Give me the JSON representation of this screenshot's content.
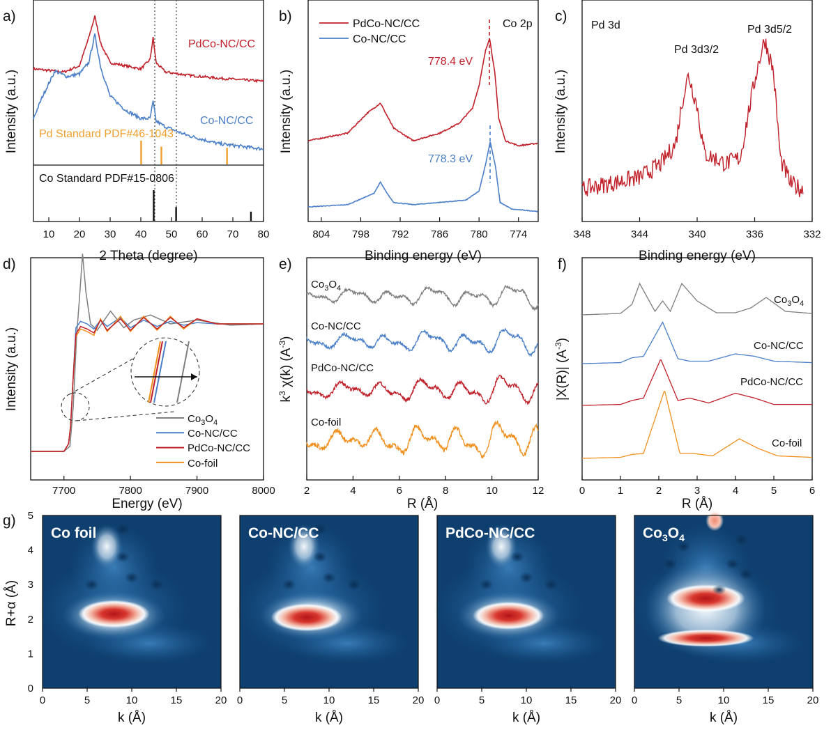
{
  "colors": {
    "red": "#c0202a",
    "blue": "#4a7fc8",
    "gray": "#7f7f7f",
    "orange": "#f0901e",
    "black": "#111111",
    "std_pd": "#f0a030",
    "hm_dark": "#0f3f6e",
    "hm_light": "#ffffff",
    "hm_red": "#c41f21"
  },
  "panels": {
    "a": {
      "label": "a)",
      "ylabel": "Intensity (a.u.)",
      "xlabel": "2 Theta (degree)",
      "xticks": [
        "10",
        "20",
        "30",
        "40",
        "50",
        "60",
        "70",
        "80"
      ],
      "series_labels": [
        "PdCo-NC/CC",
        "Co-NC/CC"
      ],
      "pd_standard": "Pd Standard PDF#46-1043",
      "co_standard": "Co Standard PDF#15-0806"
    },
    "b": {
      "label": "b)",
      "ylabel": "Intensity (a.u.)",
      "xlabel": "Binding energy (eV)",
      "xticks": [
        "804",
        "798",
        "792",
        "786",
        "780",
        "774"
      ],
      "legend": [
        "PdCo-NC/CC",
        "Co-NC/CC"
      ],
      "region": "Co 2p",
      "peak_red": "778.4 eV",
      "peak_blue": "778.3 eV"
    },
    "c": {
      "label": "c)",
      "ylabel": "Intensity (a.u.)",
      "xlabel": "Binding energy (eV)",
      "xticks": [
        "348",
        "344",
        "340",
        "336",
        "332"
      ],
      "region": "Pd 3d",
      "peak_left": "Pd 3d3/2",
      "peak_right": "Pd 3d5/2"
    },
    "d": {
      "label": "d)",
      "ylabel": "Intensity (a.u.)",
      "xlabel": "Energy (eV)",
      "xticks": [
        "7700",
        "7800",
        "7900",
        "8000"
      ],
      "legend": [
        "Co3O4",
        "Co-NC/CC",
        "PdCo-NC/CC",
        "Co-foil"
      ]
    },
    "e": {
      "label": "e)",
      "ylabel": "k3 χ(k) (A-3)",
      "xlabel": "R (Å)",
      "xticks": [
        "2",
        "4",
        "6",
        "8",
        "10",
        "12"
      ],
      "curve_labels": [
        "Co3O4",
        "Co-NC/CC",
        "PdCo-NC/CC",
        "Co-foil"
      ]
    },
    "f": {
      "label": "f)",
      "ylabel": "|X(R)| (A-3)",
      "xlabel": "R (Å)",
      "xticks": [
        "0",
        "1",
        "2",
        "3",
        "4",
        "5",
        "6"
      ],
      "curve_labels": [
        "Co3O4",
        "Co-NC/CC",
        "PdCo-NC/CC",
        "Co-foil"
      ]
    },
    "g": {
      "label": "g)",
      "ylabel": "R+α (Å)",
      "xlabel": "k (Å)",
      "yticks": [
        "0",
        "1",
        "2",
        "3",
        "4",
        "5"
      ],
      "xticks": [
        "0",
        "5",
        "10",
        "15",
        "20"
      ],
      "titles": [
        "Co foil",
        "Co-NC/CC",
        "PdCo-NC/CC",
        "Co3O4"
      ]
    }
  },
  "chart_data": [
    {
      "id": "a",
      "type": "line",
      "title": "",
      "xlabel": "2 Theta (degree)",
      "ylabel": "Intensity (a.u.)",
      "xlim": [
        5,
        80
      ],
      "series": [
        {
          "name": "PdCo-NC/CC",
          "x": [
            5,
            15,
            20,
            23,
            25,
            27,
            30,
            35,
            40,
            43,
            44,
            45,
            48,
            55,
            65,
            80
          ],
          "y": [
            8.6,
            8.5,
            8.7,
            9.6,
            10.3,
            9.4,
            8.8,
            8.7,
            8.6,
            8.9,
            9.6,
            8.8,
            8.5,
            8.4,
            8.3,
            8.2
          ]
        },
        {
          "name": "Co-NC/CC",
          "x": [
            5,
            8,
            12,
            16,
            20,
            23,
            25,
            27,
            30,
            35,
            40,
            43,
            44,
            45,
            48,
            55,
            65,
            80
          ],
          "y": [
            5.0,
            5.8,
            6.7,
            6.5,
            6.6,
            7.0,
            8.0,
            6.8,
            5.8,
            5.3,
            5.0,
            5.0,
            5.6,
            4.9,
            4.7,
            4.4,
            4.1,
            3.9
          ]
        }
      ],
      "pd_standard_peaks": {
        "x": [
          40.1,
          46.7,
          68.1
        ],
        "heights": [
          1.0,
          0.75,
          0.7
        ]
      },
      "co_standard_peaks": {
        "x": [
          44.2,
          51.5,
          75.9
        ],
        "heights": [
          1.0,
          0.45,
          0.3
        ]
      },
      "reference_lines_x": [
        44.2,
        51.5
      ]
    },
    {
      "id": "b",
      "type": "line",
      "title": "Co 2p",
      "xlabel": "Binding energy (eV)",
      "ylabel": "Intensity (a.u.)",
      "xlim": [
        806,
        771
      ],
      "x_reversed": true,
      "series": [
        {
          "name": "PdCo-NC/CC",
          "x": [
            806,
            800,
            797,
            795,
            793,
            790,
            786,
            783,
            781,
            780,
            779,
            778.4,
            777.6,
            777,
            776,
            774,
            771
          ],
          "y": [
            6.3,
            6.6,
            7.4,
            7.8,
            6.8,
            6.3,
            6.6,
            7.0,
            7.6,
            8.5,
            9.9,
            10.4,
            9.0,
            7.2,
            6.3,
            6.1,
            6.2
          ]
        },
        {
          "name": "Co-NC/CC",
          "x": [
            806,
            800,
            796,
            795,
            794,
            793,
            790,
            786,
            782,
            780,
            779,
            778.3,
            777.5,
            776.8,
            775,
            771
          ],
          "y": [
            1.3,
            1.4,
            1.9,
            2.4,
            1.9,
            1.5,
            1.4,
            1.5,
            1.6,
            2.0,
            3.2,
            4.2,
            3.1,
            1.5,
            1.2,
            1.1
          ]
        }
      ],
      "peak_markers": [
        {
          "x": 778.4,
          "label": "778.4 eV"
        },
        {
          "x": 778.3,
          "label": "778.3 eV"
        }
      ]
    },
    {
      "id": "c",
      "type": "line",
      "title": "Pd 3d",
      "xlabel": "Binding energy (eV)",
      "ylabel": "Intensity (a.u.)",
      "xlim": [
        348,
        332
      ],
      "x_reversed": true,
      "series": [
        {
          "name": "Pd 3d",
          "x": [
            348,
            346,
            344,
            342.5,
            341.5,
            341,
            340.6,
            340,
            339.5,
            338,
            337,
            336.4,
            335.8,
            335.3,
            334.7,
            334.2,
            333.5,
            332.5
          ],
          "y": [
            2.0,
            2.3,
            2.6,
            3.3,
            4.3,
            6.6,
            7.8,
            6.2,
            3.8,
            3.3,
            3.6,
            6.0,
            8.2,
            9.6,
            8.0,
            3.5,
            2.3,
            1.9
          ]
        }
      ],
      "peaks": [
        {
          "x": 340.6,
          "label": "Pd 3d3/2"
        },
        {
          "x": 335.3,
          "label": "Pd 3d5/2"
        }
      ]
    },
    {
      "id": "d",
      "type": "line",
      "title": "",
      "xlabel": "Energy (eV)",
      "ylabel": "Intensity (a.u.)",
      "xlim": [
        7650,
        8000
      ],
      "series": [
        {
          "name": "Co3O4",
          "x": [
            7650,
            7700,
            7709,
            7714,
            7719,
            7724,
            7728,
            7733,
            7740,
            7750,
            7770,
            7790,
            7805,
            7830,
            7860,
            7900,
            7950,
            8000
          ],
          "y": [
            0.0,
            0.0,
            0.04,
            0.35,
            0.9,
            1.25,
            1.55,
            1.25,
            1.0,
            0.95,
            1.1,
            0.97,
            1.03,
            1.07,
            1.0,
            1.03,
            0.99,
            1.0
          ]
        },
        {
          "name": "Co-NC/CC",
          "x": [
            7650,
            7700,
            7707,
            7710,
            7713,
            7718,
            7725,
            7735,
            7745,
            7755,
            7765,
            7785,
            7800,
            7820,
            7840,
            7860,
            7880,
            7900,
            7930,
            7960,
            8000
          ],
          "y": [
            0.0,
            0.0,
            0.06,
            0.2,
            0.5,
            0.97,
            1.02,
            1.0,
            0.96,
            1.03,
            0.98,
            1.05,
            0.97,
            1.03,
            0.98,
            1.02,
            0.99,
            1.01,
            1.0,
            1.0,
            1.0
          ]
        },
        {
          "name": "PdCo-NC/CC",
          "x": [
            7650,
            7700,
            7707,
            7710,
            7713,
            7718,
            7725,
            7735,
            7745,
            7755,
            7765,
            7785,
            7800,
            7820,
            7840,
            7860,
            7880,
            7900,
            7930,
            7960,
            8000
          ],
          "y": [
            0.0,
            0.0,
            0.06,
            0.2,
            0.5,
            0.92,
            0.98,
            0.96,
            0.93,
            1.03,
            0.95,
            1.04,
            0.95,
            1.05,
            0.96,
            1.05,
            0.97,
            1.04,
            1.0,
            1.0,
            1.0
          ]
        },
        {
          "name": "Co-foil",
          "x": [
            7650,
            7700,
            7707,
            7710,
            7713,
            7718,
            7725,
            7735,
            7745,
            7755,
            7765,
            7785,
            7800,
            7820,
            7840,
            7860,
            7880,
            7900,
            7930,
            7960,
            8000
          ],
          "y": [
            0.0,
            0.0,
            0.06,
            0.2,
            0.5,
            0.9,
            0.96,
            0.94,
            0.91,
            1.04,
            0.94,
            1.06,
            0.94,
            1.06,
            0.95,
            1.06,
            0.96,
            1.04,
            1.0,
            1.0,
            1.0
          ]
        }
      ]
    },
    {
      "id": "e",
      "type": "line",
      "title": "",
      "xlabel": "R (Å)",
      "ylabel": "k3 χ(k) (A-3)",
      "xlim": [
        2,
        12
      ],
      "series": [
        {
          "name": "Co3O4",
          "offset": 3.0
        },
        {
          "name": "Co-NC/CC",
          "offset": 2.0
        },
        {
          "name": "PdCo-NC/CC",
          "offset": 1.0
        },
        {
          "name": "Co-foil",
          "offset": 0.0
        }
      ]
    },
    {
      "id": "f",
      "type": "line",
      "title": "",
      "xlabel": "R (Å)",
      "ylabel": "|X(R)| (A-3)",
      "xlim": [
        0,
        6
      ],
      "series": [
        {
          "name": "Co3O4",
          "offset": 3.0,
          "x": [
            0,
            1,
            1.3,
            1.5,
            1.9,
            2.1,
            2.3,
            2.6,
            3.0,
            3.5,
            4.0,
            4.4,
            4.8,
            5.3,
            6.0
          ],
          "y": [
            0,
            0.02,
            0.15,
            0.45,
            0.05,
            0.2,
            0.05,
            0.45,
            0.2,
            0.03,
            0.03,
            0.1,
            0.25,
            0.05,
            0.02
          ]
        },
        {
          "name": "Co-NC/CC",
          "offset": 2.0,
          "x": [
            0,
            1,
            1.3,
            1.6,
            2.1,
            2.5,
            2.8,
            3.3,
            4.0,
            4.5,
            5.0,
            6.0
          ],
          "y": [
            0,
            0.02,
            0.12,
            0.15,
            0.85,
            0.1,
            0.05,
            0.05,
            0.2,
            0.15,
            0.05,
            0.02
          ]
        },
        {
          "name": "PdCo-NC/CC",
          "offset": 1.0,
          "x": [
            0,
            1,
            1.3,
            1.6,
            2.05,
            2.5,
            2.8,
            3.3,
            4.0,
            4.5,
            5.0,
            6.0
          ],
          "y": [
            0,
            0.02,
            0.1,
            0.15,
            0.95,
            0.1,
            0.15,
            0.05,
            0.25,
            0.15,
            0.02,
            0.02
          ]
        },
        {
          "name": "Co-foil",
          "offset": 0.0,
          "x": [
            0,
            1,
            1.3,
            1.6,
            2.15,
            2.55,
            2.9,
            3.4,
            4.1,
            4.6,
            5.1,
            6.0
          ],
          "y": [
            0,
            0.02,
            0.08,
            0.1,
            1.4,
            0.1,
            0.1,
            0.05,
            0.4,
            0.2,
            0.05,
            0.02
          ]
        }
      ]
    },
    {
      "id": "g",
      "type": "heatmap",
      "title": "",
      "xlabel": "k (Å)",
      "ylabel": "R+α (Å)",
      "xlim": [
        0,
        20
      ],
      "ylim": [
        0,
        5
      ],
      "maps": [
        {
          "name": "Co foil",
          "blobs": [
            {
              "k": 8,
              "R": 2.15,
              "amp": 1.0
            },
            {
              "k": 7,
              "R": 4.1,
              "amp": 0.35
            }
          ]
        },
        {
          "name": "Co-NC/CC",
          "blobs": [
            {
              "k": 7.5,
              "R": 2.05,
              "amp": 1.0
            },
            {
              "k": 7,
              "R": 4.1,
              "amp": 0.35
            }
          ]
        },
        {
          "name": "PdCo-NC/CC",
          "blobs": [
            {
              "k": 8,
              "R": 2.1,
              "amp": 1.0
            },
            {
              "k": 7,
              "R": 4.1,
              "amp": 0.35
            }
          ]
        },
        {
          "name": "Co3O4",
          "blobs": [
            {
              "k": 8,
              "R": 1.45,
              "amp": 1.0
            },
            {
              "k": 8,
              "R": 2.6,
              "amp": 0.95
            },
            {
              "k": 9,
              "R": 4.8,
              "amp": 0.6
            }
          ]
        }
      ]
    }
  ]
}
